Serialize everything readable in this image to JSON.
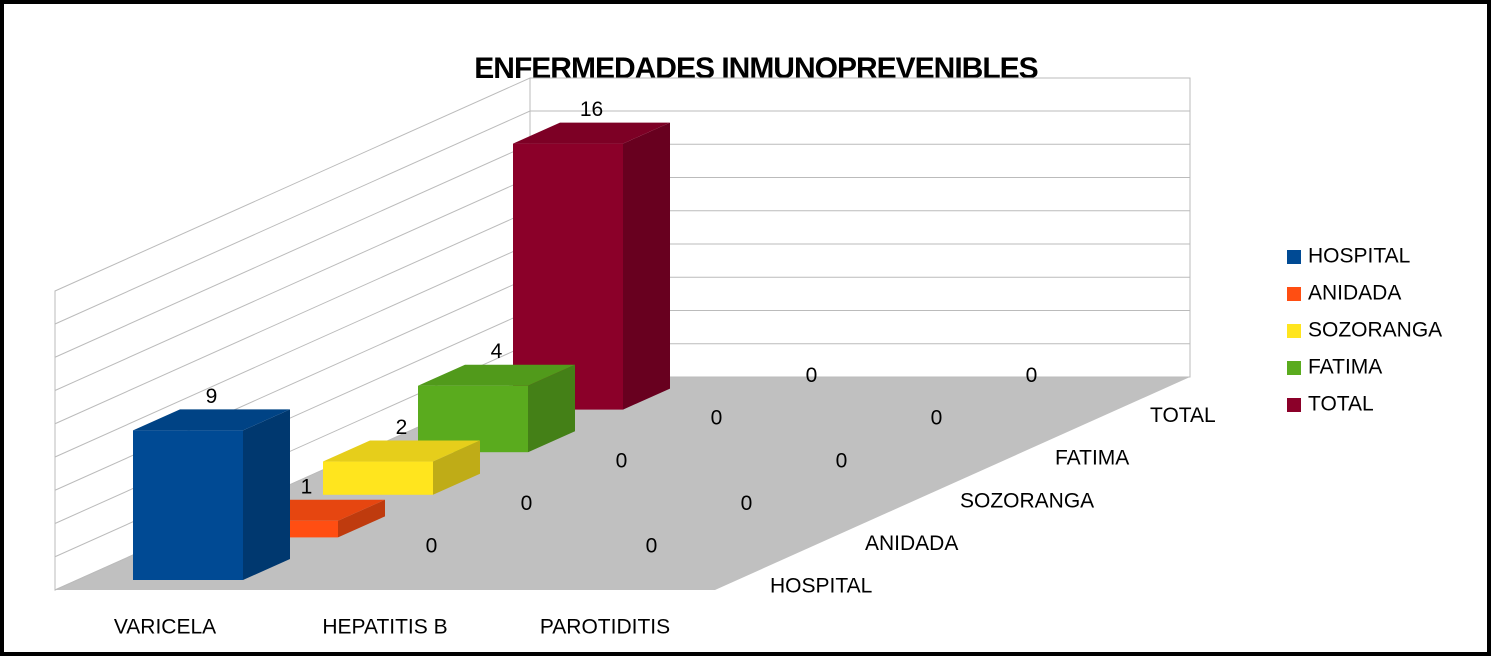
{
  "chart_data": {
    "type": "bar3d",
    "title": "ENFERMEDADES INMUNOPREVENIBLES",
    "categories": [
      "VARICELA",
      "HEPATITIS B",
      "PAROTIDITIS"
    ],
    "series": [
      {
        "name": "HOSPITAL",
        "color": "#004a94",
        "values": [
          9,
          0,
          0
        ]
      },
      {
        "name": "ANIDADA",
        "color": "#ff4e12",
        "values": [
          1,
          0,
          0
        ]
      },
      {
        "name": "SOZORANGA",
        "color": "#ffe51e",
        "values": [
          2,
          0,
          0
        ]
      },
      {
        "name": "FATIMA",
        "color": "#5aab1e",
        "values": [
          4,
          0,
          0
        ]
      },
      {
        "name": "TOTAL",
        "color": "#8b0029",
        "values": [
          16,
          0,
          0
        ]
      }
    ],
    "ylim": [
      0,
      16
    ],
    "yticks": [
      0,
      2,
      4,
      6,
      8,
      10,
      12,
      14,
      16
    ],
    "grid": true,
    "legend": "right"
  }
}
